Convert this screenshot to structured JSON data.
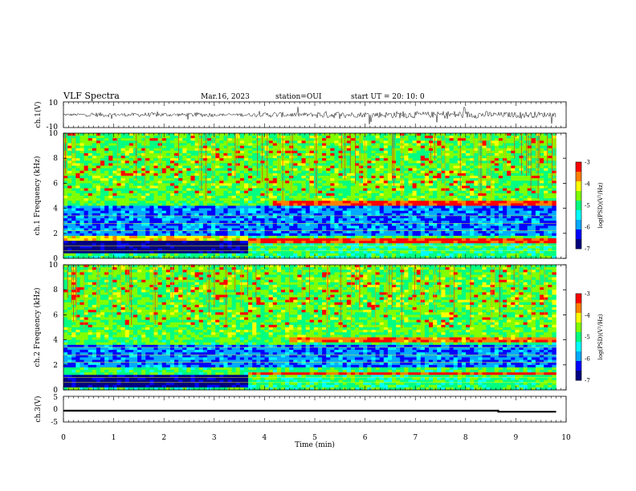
{
  "header": {
    "title": "VLF Spectra",
    "date": "Mar.16, 2023",
    "station": "station=OUI",
    "start_time": "start UT =  20: 10: 0"
  },
  "chart_data": [
    {
      "type": "line",
      "panel": "ch1-waveform",
      "ylabel": "ch.1(V)",
      "ylim": [
        -10,
        10
      ],
      "yticks": [
        "10",
        "-10"
      ],
      "xlim": [
        0,
        10
      ],
      "note_values": "amplitude bursts (V) sampled per 0.5 min",
      "envelope_x": [
        0,
        0.5,
        1,
        1.5,
        2,
        2.5,
        3,
        3.5,
        4,
        4.5,
        5,
        5.5,
        6,
        6.5,
        7,
        7.5,
        8,
        8.5,
        9,
        9.5,
        9.8
      ],
      "envelope_v": [
        3,
        5,
        4,
        5,
        4,
        5,
        3,
        4,
        6,
        5,
        8,
        6,
        7,
        8,
        7,
        9,
        8,
        6,
        7,
        6,
        5
      ]
    },
    {
      "type": "heatmap",
      "panel": "ch1-spectrogram",
      "ylabel": "ch.1 Frequency (kHz)",
      "ylim": [
        0,
        10
      ],
      "yticks": [
        "0",
        "2",
        "4",
        "6",
        "8",
        "10"
      ],
      "xlim": [
        0,
        10
      ],
      "colorbar": {
        "label": "log(PSD)(V²/Hz)",
        "range": [
          -7,
          -3
        ],
        "ticks": [
          "-3",
          "-4",
          "-5",
          "-6",
          "-7"
        ]
      },
      "bands": [
        {
          "x": [
            0,
            3.7
          ],
          "f": [
            0.4,
            1.4
          ],
          "level": -6.8
        },
        {
          "x": [
            0,
            3.7
          ],
          "f": [
            1.4,
            1.8
          ],
          "level": -4.0
        },
        {
          "x": [
            0,
            10
          ],
          "f": [
            1.8,
            4.2
          ],
          "level": -6.0
        },
        {
          "x": [
            3.7,
            9.8
          ],
          "f": [
            0.4,
            1.2
          ],
          "level": -5.0
        },
        {
          "x": [
            3.7,
            9.8
          ],
          "f": [
            1.3,
            1.7
          ],
          "level": -3.3
        },
        {
          "x": [
            4.2,
            9.8
          ],
          "f": [
            4.2,
            4.6
          ],
          "level": -3.4
        },
        {
          "x": [
            0,
            9.8
          ],
          "f": [
            4.6,
            10
          ],
          "level": -4.7
        }
      ]
    },
    {
      "type": "heatmap",
      "panel": "ch2-spectrogram",
      "ylabel": "ch.2 Frequency (kHz)",
      "ylim": [
        0,
        10
      ],
      "yticks": [
        "0",
        "2",
        "4",
        "6",
        "8",
        "10"
      ],
      "xlim": [
        0,
        10
      ],
      "colorbar": {
        "label": "log(PSD)(V²/Hz)",
        "range": [
          -7,
          -3
        ],
        "ticks": [
          "-3",
          "-4",
          "-5",
          "-6",
          "-7"
        ]
      },
      "bands": [
        {
          "x": [
            0,
            3.7
          ],
          "f": [
            0.3,
            1.2
          ],
          "level": -6.8
        },
        {
          "x": [
            0,
            10
          ],
          "f": [
            1.8,
            3.6
          ],
          "level": -6.0
        },
        {
          "x": [
            3.7,
            9.8
          ],
          "f": [
            0.3,
            1.1
          ],
          "level": -5.0
        },
        {
          "x": [
            3.7,
            9.8
          ],
          "f": [
            1.2,
            1.5
          ],
          "level": -3.3
        },
        {
          "x": [
            4.5,
            9.8
          ],
          "f": [
            3.8,
            4.3
          ],
          "level": -3.5
        },
        {
          "x": [
            0,
            9.8
          ],
          "f": [
            4.3,
            10
          ],
          "level": -4.7
        }
      ]
    },
    {
      "type": "line",
      "panel": "ch3-level",
      "ylabel": "ch.3(V)",
      "ylim": [
        -5,
        5
      ],
      "yticks": [
        "5",
        "0",
        "-5"
      ],
      "xlim": [
        0,
        10
      ],
      "xticks": [
        "0",
        "1",
        "2",
        "3",
        "4",
        "5",
        "6",
        "7",
        "8",
        "9",
        "10"
      ],
      "xlabel": "Time (min)",
      "x": [
        0,
        8.65,
        8.65,
        9.8
      ],
      "y": [
        -0.6,
        -0.6,
        -1.0,
        -1.0
      ]
    }
  ],
  "colors": {
    "scale": [
      "#000080",
      "#0000ff",
      "#00aaff",
      "#00ffff",
      "#00ff80",
      "#80ff00",
      "#ffff00",
      "#ff8000",
      "#ff0000",
      "#ffffff"
    ]
  }
}
